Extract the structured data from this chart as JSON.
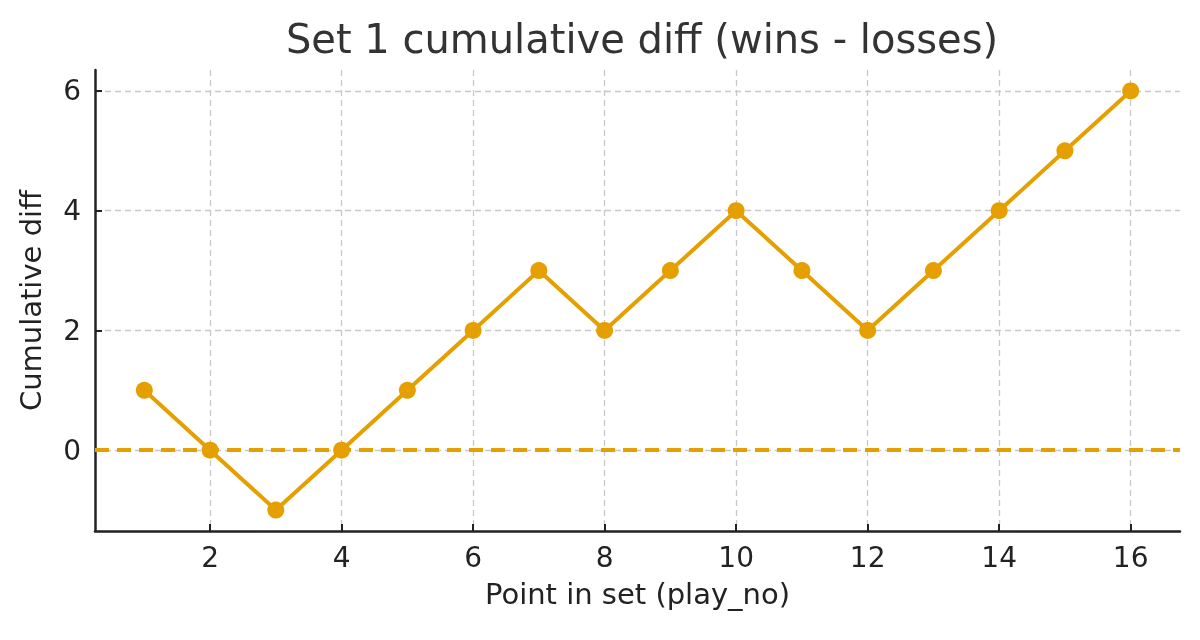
{
  "chart_data": {
    "type": "line",
    "title": "Set 1 cumulative diff (wins - losses)",
    "xlabel": "Point in set (play_no)",
    "ylabel": "Cumulative diff",
    "x": [
      1,
      2,
      3,
      4,
      5,
      6,
      7,
      8,
      9,
      10,
      11,
      12,
      13,
      14,
      15,
      16
    ],
    "series": [
      {
        "color": "#e69f00",
        "values": [
          1,
          0,
          -1,
          0,
          1,
          2,
          3,
          2,
          3,
          4,
          3,
          2,
          3,
          4,
          5,
          6
        ]
      }
    ],
    "xlim": [
      0.25,
      16.75
    ],
    "xticks": [
      2,
      4,
      6,
      8,
      10,
      12,
      14,
      16
    ],
    "ylim": [
      -1.35,
      6.35
    ],
    "yticks": [
      0,
      2,
      4,
      6
    ],
    "ref_lines": [
      {
        "axis": "y",
        "value": 0,
        "color": "#e69f00",
        "line_style": "dashed"
      }
    ],
    "grid": true,
    "marker": "circle",
    "line_style": "solid"
  }
}
